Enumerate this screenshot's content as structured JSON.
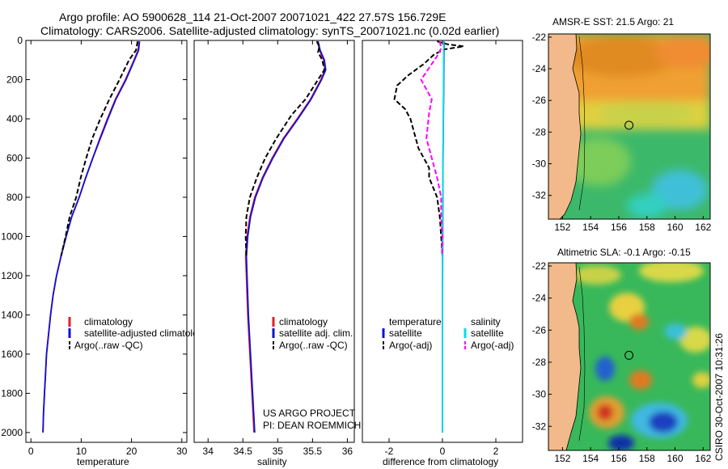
{
  "header": {
    "title_line1": "Argo profile: AO 5900628_114 21-Oct-2007 20071021_422 27.57S 156.729E",
    "title_line2": "Climatology: CARS2006. Satellite-adjusted climatology: synTS_20071021.nc (0.02d earlier)"
  },
  "footer": {
    "project_line1": "US ARGO PROJECT",
    "project_line2": "PI: DEAN ROEMMICH",
    "credit": "CSIRO 30-Oct-2007 10:31:26"
  },
  "colors": {
    "climatology": "#e02020",
    "satellite": "#1010d8",
    "argo": "#000000",
    "sat_salinity": "#00e0e0",
    "argo_salinity": "#ff00ff",
    "land": "#f2b98a"
  },
  "chart_data": [
    {
      "type": "line",
      "id": "temperature",
      "xlabel": "temperature",
      "xlim": [
        -1,
        31
      ],
      "ylim": [
        2050,
        0
      ],
      "xticks": [
        0,
        10,
        20,
        30
      ],
      "yticks": [
        0,
        200,
        400,
        600,
        800,
        1000,
        1200,
        1400,
        1600,
        1800,
        2000
      ],
      "legend": [
        "climatology",
        "satellite-adjusted climatology",
        "Argo(..raw -QC)"
      ],
      "series": [
        {
          "name": "climatology",
          "style": "solid",
          "color": "#e02020",
          "points": [
            [
              21.5,
              5
            ],
            [
              21.3,
              50
            ],
            [
              20.5,
              100
            ],
            [
              18.8,
              200
            ],
            [
              16.8,
              300
            ],
            [
              15.2,
              400
            ],
            [
              13.7,
              500
            ],
            [
              12.3,
              600
            ],
            [
              10.9,
              700
            ],
            [
              9.6,
              800
            ],
            [
              8.1,
              900
            ],
            [
              7.0,
              1000
            ],
            [
              6.0,
              1100
            ],
            [
              5.1,
              1200
            ],
            [
              4.4,
              1300
            ],
            [
              3.9,
              1400
            ],
            [
              3.5,
              1500
            ],
            [
              3.1,
              1600
            ],
            [
              2.9,
              1700
            ],
            [
              2.7,
              1800
            ],
            [
              2.5,
              1900
            ],
            [
              2.4,
              2000
            ]
          ]
        },
        {
          "name": "satellite-adjusted climatology",
          "style": "solid",
          "color": "#1010d8",
          "points": [
            [
              21.6,
              5
            ],
            [
              21.4,
              50
            ],
            [
              20.6,
              100
            ],
            [
              18.9,
              200
            ],
            [
              16.9,
              300
            ],
            [
              15.3,
              400
            ],
            [
              13.8,
              500
            ],
            [
              12.3,
              600
            ],
            [
              10.9,
              700
            ],
            [
              9.6,
              800
            ],
            [
              8.1,
              900
            ],
            [
              7.0,
              1000
            ],
            [
              6.0,
              1100
            ],
            [
              5.1,
              1200
            ],
            [
              4.4,
              1300
            ],
            [
              3.9,
              1400
            ],
            [
              3.5,
              1500
            ],
            [
              3.1,
              1600
            ],
            [
              2.9,
              1700
            ],
            [
              2.7,
              1800
            ],
            [
              2.5,
              1900
            ],
            [
              2.4,
              2000
            ]
          ]
        },
        {
          "name": "Argo(..raw -QC)",
          "style": "dashed",
          "color": "#000000",
          "points": [
            [
              21.2,
              5
            ],
            [
              20.9,
              50
            ],
            [
              19.5,
              100
            ],
            [
              17.6,
              200
            ],
            [
              15.6,
              300
            ],
            [
              13.8,
              400
            ],
            [
              12.2,
              500
            ],
            [
              11.0,
              600
            ],
            [
              9.9,
              700
            ],
            [
              9.0,
              800
            ],
            [
              7.7,
              900
            ],
            [
              6.9,
              1000
            ],
            [
              6.0,
              1100
            ]
          ]
        }
      ]
    },
    {
      "type": "line",
      "id": "salinity",
      "xlabel": "salinity",
      "xlim": [
        33.8,
        36.1
      ],
      "ylim": [
        2050,
        0
      ],
      "xticks": [
        34,
        34.5,
        35,
        35.5,
        36
      ],
      "legend": [
        "climatology",
        "satellite adj. clim.",
        "Argo(..raw -QC)"
      ],
      "series": [
        {
          "name": "climatology",
          "style": "solid",
          "color": "#e02020",
          "points": [
            [
              35.57,
              5
            ],
            [
              35.6,
              50
            ],
            [
              35.66,
              100
            ],
            [
              35.68,
              150
            ],
            [
              35.62,
              200
            ],
            [
              35.47,
              300
            ],
            [
              35.28,
              400
            ],
            [
              35.08,
              500
            ],
            [
              34.92,
              600
            ],
            [
              34.78,
              700
            ],
            [
              34.67,
              800
            ],
            [
              34.6,
              900
            ],
            [
              34.56,
              1000
            ],
            [
              34.54,
              1100
            ],
            [
              34.55,
              1200
            ],
            [
              34.57,
              1400
            ],
            [
              34.6,
              1600
            ],
            [
              34.63,
              1800
            ],
            [
              34.66,
              2000
            ]
          ]
        },
        {
          "name": "satellite adj. clim.",
          "style": "solid",
          "color": "#1010d8",
          "points": [
            [
              35.58,
              5
            ],
            [
              35.61,
              50
            ],
            [
              35.67,
              100
            ],
            [
              35.69,
              150
            ],
            [
              35.63,
              200
            ],
            [
              35.48,
              300
            ],
            [
              35.29,
              400
            ],
            [
              35.09,
              500
            ],
            [
              34.93,
              600
            ],
            [
              34.79,
              700
            ],
            [
              34.68,
              800
            ],
            [
              34.61,
              900
            ],
            [
              34.57,
              1000
            ],
            [
              34.55,
              1100
            ],
            [
              34.56,
              1200
            ],
            [
              34.58,
              1400
            ],
            [
              34.61,
              1600
            ],
            [
              34.64,
              1800
            ],
            [
              34.67,
              2000
            ]
          ]
        },
        {
          "name": "Argo(..raw -QC)",
          "style": "dashed",
          "color": "#000000",
          "points": [
            [
              35.56,
              5
            ],
            [
              35.6,
              30
            ],
            [
              35.58,
              60
            ],
            [
              35.64,
              100
            ],
            [
              35.67,
              150
            ],
            [
              35.58,
              200
            ],
            [
              35.4,
              300
            ],
            [
              35.2,
              380
            ],
            [
              34.98,
              500
            ],
            [
              34.82,
              600
            ],
            [
              34.7,
              700
            ],
            [
              34.6,
              800
            ],
            [
              34.55,
              900
            ],
            [
              34.54,
              1000
            ],
            [
              34.55,
              1100
            ]
          ]
        }
      ]
    },
    {
      "type": "line",
      "id": "difference",
      "xlabel": "difference from climatology",
      "xlim": [
        -3,
        3
      ],
      "ylim": [
        2050,
        0
      ],
      "xticks": [
        -2,
        0,
        2
      ],
      "legend": [
        "temperature",
        "satellite",
        "Argo(-adj)",
        "salinity",
        "satellite",
        "Argo(-adj)"
      ],
      "series": [
        {
          "name": "temperature satellite",
          "style": "solid",
          "color": "#1010d8",
          "points": [
            [
              0.06,
              5
            ],
            [
              0.05,
              200
            ],
            [
              0.02,
              600
            ],
            [
              0.01,
              1000
            ],
            [
              0.0,
              1400
            ],
            [
              0.0,
              2000
            ]
          ]
        },
        {
          "name": "temperature Argo(-adj)",
          "style": "dashed",
          "color": "#000000",
          "points": [
            [
              -0.2,
              5
            ],
            [
              0.2,
              20
            ],
            [
              0.8,
              30
            ],
            [
              0.1,
              45
            ],
            [
              -0.3,
              70
            ],
            [
              -0.7,
              120
            ],
            [
              -1.3,
              180
            ],
            [
              -1.7,
              230
            ],
            [
              -1.8,
              300
            ],
            [
              -1.4,
              350
            ],
            [
              -1.2,
              400
            ],
            [
              -1.1,
              450
            ],
            [
              -0.9,
              550
            ],
            [
              -0.5,
              650
            ],
            [
              -0.5,
              700
            ],
            [
              -0.2,
              800
            ],
            [
              -0.1,
              900
            ],
            [
              -0.05,
              1000
            ],
            [
              0.0,
              1100
            ]
          ]
        },
        {
          "name": "salinity satellite",
          "style": "solid",
          "color": "#00e0e0",
          "points": [
            [
              0.05,
              5
            ],
            [
              0.04,
              200
            ],
            [
              0.02,
              600
            ],
            [
              0.0,
              1000
            ],
            [
              0.0,
              2000
            ]
          ]
        },
        {
          "name": "salinity Argo(-adj)",
          "style": "dashed",
          "color": "#ff00ff",
          "points": [
            [
              -0.1,
              5
            ],
            [
              -0.05,
              40
            ],
            [
              -0.2,
              80
            ],
            [
              -0.8,
              200
            ],
            [
              -0.4,
              300
            ],
            [
              -0.5,
              370
            ],
            [
              -0.6,
              500
            ],
            [
              -0.4,
              600
            ],
            [
              -0.2,
              700
            ],
            [
              -0.05,
              800
            ],
            [
              -0.05,
              900
            ],
            [
              0.0,
              1000
            ],
            [
              -0.02,
              1100
            ]
          ]
        }
      ]
    },
    {
      "type": "heatmap",
      "id": "sst_map",
      "title": "AMSR-E SST: 21.5 Argo: 21",
      "xlim": [
        151,
        162.5
      ],
      "ylim": [
        -33.5,
        -21.8
      ],
      "xticks": [
        152,
        154,
        156,
        158,
        160,
        162
      ],
      "yticks": [
        -22,
        -24,
        -26,
        -28,
        -30,
        -32
      ],
      "float_position": [
        156.729,
        -27.57
      ]
    },
    {
      "type": "heatmap",
      "id": "sla_map",
      "title": "Altimetric SLA: -0.1 Argo: -0.15",
      "xlim": [
        151,
        162.5
      ],
      "ylim": [
        -33.5,
        -21.8
      ],
      "xticks": [
        152,
        154,
        156,
        158,
        160,
        162
      ],
      "yticks": [
        -22,
        -24,
        -26,
        -28,
        -30,
        -32
      ],
      "float_position": [
        156.729,
        -27.57
      ]
    }
  ]
}
